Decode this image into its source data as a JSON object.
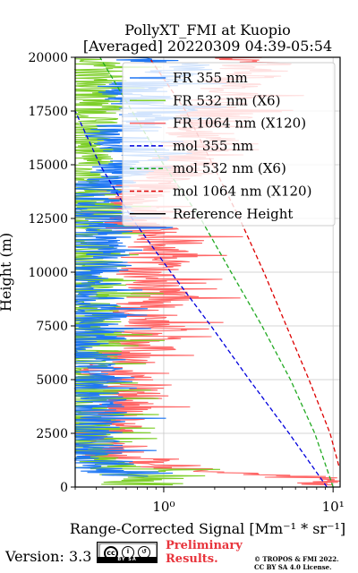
{
  "chart_data": {
    "type": "line",
    "title": "PollyXT_FMI at Kuopio",
    "subtitle": "[Averaged] 20220309 04:39-05:54",
    "xlabel": "Range-Corrected Signal [Mm⁻¹ * sr⁻¹]",
    "ylabel": "Height (m)",
    "xscale": "log",
    "xlim": [
      0.3,
      11
    ],
    "ylim": [
      0,
      20000
    ],
    "x_ticks": [
      {
        "value": 1,
        "label": "10⁰"
      },
      {
        "value": 10,
        "label": "10¹"
      }
    ],
    "y_ticks": [
      0,
      2500,
      5000,
      7500,
      10000,
      12500,
      15000,
      17500,
      20000
    ],
    "y_tick_labels": [
      "0",
      "2500",
      "5000",
      "7500",
      "10000",
      "12500",
      "15000",
      "17500",
      "20000"
    ],
    "grid": true,
    "legend_position": "upper-right",
    "series": [
      {
        "name": "FR 355 nm",
        "color": "#1f77f4",
        "style": "solid",
        "kind": "noisy",
        "points": [
          [
            0.55,
            500
          ],
          [
            0.9,
            600
          ],
          [
            0.35,
            700
          ],
          [
            0.5,
            800
          ],
          [
            0.4,
            1000
          ],
          [
            0.35,
            2000
          ],
          [
            0.35,
            5000
          ],
          [
            0.35,
            10000
          ],
          [
            0.4,
            12500
          ],
          [
            0.35,
            13500
          ],
          [
            0.4,
            14000
          ],
          [
            0.5,
            14500
          ],
          [
            0.8,
            15500
          ],
          [
            0.55,
            16500
          ],
          [
            1.0,
            17500
          ],
          [
            0.6,
            18500
          ],
          [
            1.5,
            19500
          ],
          [
            0.7,
            20000
          ]
        ]
      },
      {
        "name": "FR 532 nm (X6)",
        "color": "#7ecf2a",
        "style": "solid",
        "kind": "noisy",
        "points": [
          [
            0.6,
            100
          ],
          [
            0.7,
            200
          ],
          [
            0.9,
            400
          ],
          [
            0.55,
            500
          ],
          [
            0.85,
            800
          ],
          [
            0.45,
            900
          ],
          [
            0.35,
            1200
          ],
          [
            0.32,
            2000
          ],
          [
            0.35,
            18000
          ],
          [
            0.4,
            19000
          ],
          [
            0.3,
            20000
          ]
        ]
      },
      {
        "name": "FR 1064 nm (X120)",
        "color": "#ff6666",
        "style": "solid",
        "kind": "noisy",
        "points": [
          [
            10,
            100
          ],
          [
            9.5,
            300
          ],
          [
            4,
            600
          ],
          [
            1.2,
            900
          ],
          [
            0.7,
            1200
          ],
          [
            0.5,
            1600
          ],
          [
            0.4,
            2200
          ],
          [
            0.45,
            3000
          ],
          [
            0.5,
            3500
          ],
          [
            0.7,
            4500
          ],
          [
            0.5,
            5000
          ],
          [
            0.6,
            6000
          ],
          [
            0.9,
            7000
          ],
          [
            0.7,
            8000
          ],
          [
            1.0,
            9000
          ],
          [
            0.8,
            10000
          ],
          [
            1.0,
            11000
          ],
          [
            1.1,
            11500
          ],
          [
            0.5,
            12500
          ],
          [
            0.6,
            13500
          ],
          [
            1.2,
            15000
          ],
          [
            1.6,
            16000
          ],
          [
            1.9,
            17000
          ],
          [
            2.2,
            18000
          ],
          [
            2.8,
            19000
          ],
          [
            3.4,
            19600
          ],
          [
            3.0,
            20000
          ]
        ]
      },
      {
        "name": "mol 355 nm",
        "color": "#0000dd",
        "style": "dashed",
        "points": [
          [
            9.2,
            0
          ],
          [
            5.5,
            2500
          ],
          [
            3.2,
            5000
          ],
          [
            1.9,
            7500
          ],
          [
            1.1,
            10000
          ],
          [
            0.65,
            12500
          ],
          [
            0.42,
            15000
          ],
          [
            0.3,
            17500
          ]
        ]
      },
      {
        "name": "mol 532 nm (X6)",
        "color": "#22aa22",
        "style": "dashed",
        "points": [
          [
            10,
            0
          ],
          [
            7.8,
            2500
          ],
          [
            5.6,
            5000
          ],
          [
            3.8,
            7500
          ],
          [
            2.5,
            10000
          ],
          [
            1.65,
            12500
          ],
          [
            1.0,
            15000
          ],
          [
            0.65,
            17500
          ],
          [
            0.42,
            20000
          ]
        ]
      },
      {
        "name": "mol 1064 nm (X120)",
        "color": "#dd0000",
        "style": "dashed",
        "points": [
          [
            10.8,
            1000
          ],
          [
            9.6,
            2500
          ],
          [
            7.2,
            5000
          ],
          [
            5.3,
            7500
          ],
          [
            3.9,
            10000
          ],
          [
            2.8,
            12500
          ],
          [
            1.95,
            15000
          ],
          [
            1.35,
            17500
          ],
          [
            0.82,
            20000
          ]
        ]
      },
      {
        "name": "Reference Height",
        "color": "#000000",
        "style": "solid",
        "points": []
      }
    ]
  },
  "footer": {
    "version": "Version: 3.3",
    "license_badge": "BY   SA",
    "preliminary_line1": "Preliminary",
    "preliminary_line2": "Results.",
    "copyright_line1": "© TROPOS & FMI 2022.",
    "copyright_line2": "CC BY SA 4.0 License."
  }
}
